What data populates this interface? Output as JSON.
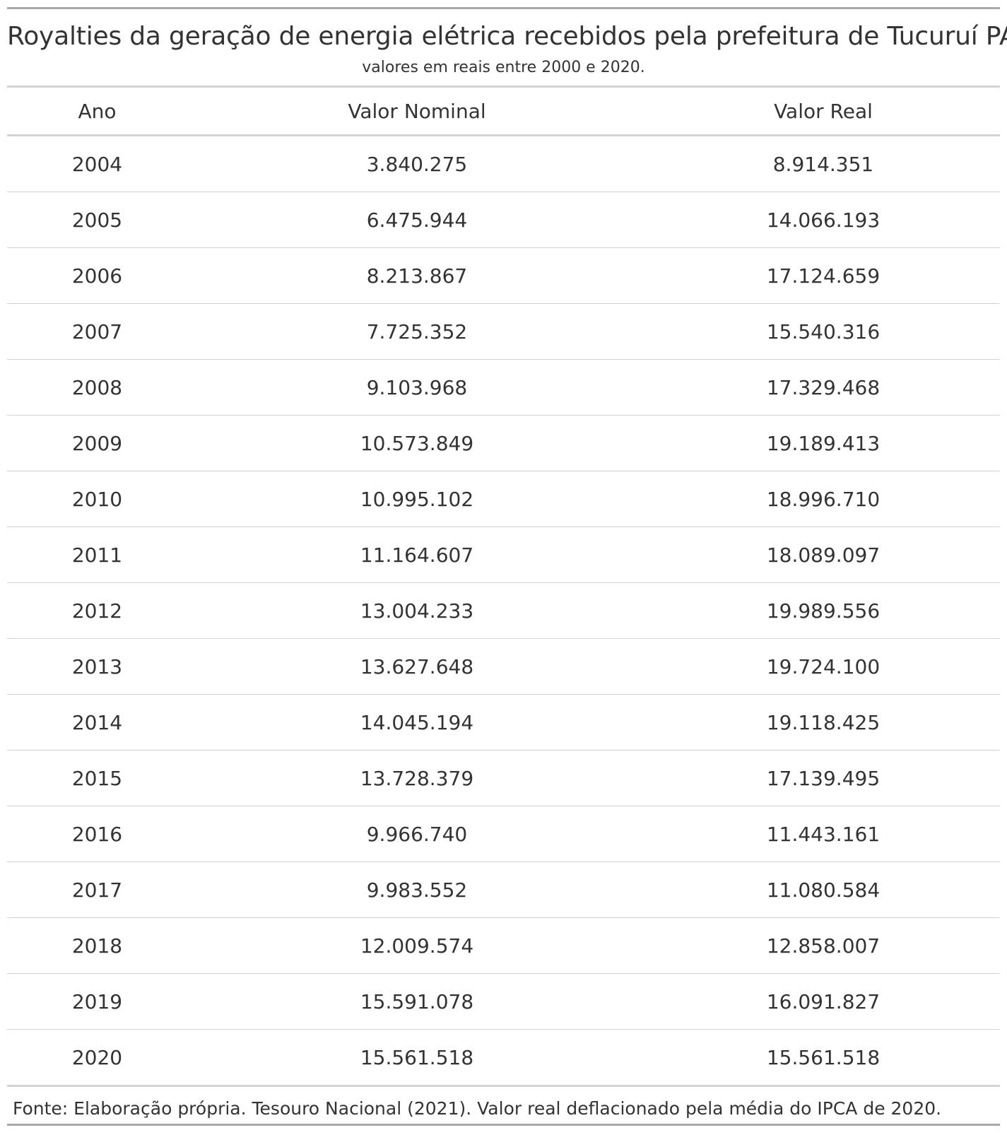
{
  "title": "Royalties da geração de energia elétrica recebidos pela prefeitura de Tucuruí PA",
  "subtitle": "valores em reais entre 2000 e 2020.",
  "columns": [
    "Ano",
    "Valor Nominal",
    "Valor Real"
  ],
  "rows": [
    [
      "2004",
      "3.840.275",
      "8.914.351"
    ],
    [
      "2005",
      "6.475.944",
      "14.066.193"
    ],
    [
      "2006",
      "8.213.867",
      "17.124.659"
    ],
    [
      "2007",
      "7.725.352",
      "15.540.316"
    ],
    [
      "2008",
      "9.103.968",
      "17.329.468"
    ],
    [
      "2009",
      "10.573.849",
      "19.189.413"
    ],
    [
      "2010",
      "10.995.102",
      "18.996.710"
    ],
    [
      "2011",
      "11.164.607",
      "18.089.097"
    ],
    [
      "2012",
      "13.004.233",
      "19.989.556"
    ],
    [
      "2013",
      "13.627.648",
      "19.724.100"
    ],
    [
      "2014",
      "14.045.194",
      "19.118.425"
    ],
    [
      "2015",
      "13.728.379",
      "17.139.495"
    ],
    [
      "2016",
      "9.966.740",
      "11.443.161"
    ],
    [
      "2017",
      "9.983.552",
      "11.080.584"
    ],
    [
      "2018",
      "12.009.574",
      "12.858.007"
    ],
    [
      "2019",
      "15.591.078",
      "16.091.827"
    ],
    [
      "2020",
      "15.561.518",
      "15.561.518"
    ]
  ],
  "source_note": "Fonte: Elaboração própria. Tesouro Nacional (2021). Valor real deflacionado pela média do IPCA de 2020."
}
